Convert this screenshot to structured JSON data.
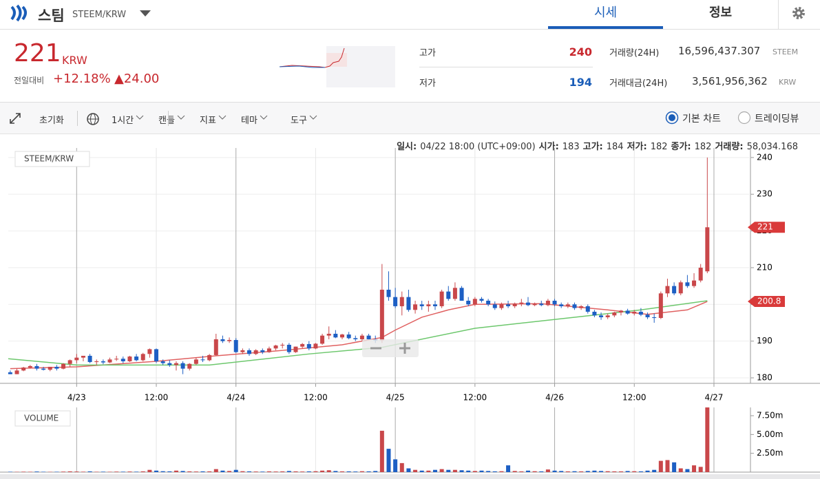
{
  "header": {
    "coin_name": "스팀",
    "pair": "STEEM/KRW",
    "tabs": [
      "시세",
      "정보"
    ]
  },
  "summary": {
    "price": "221",
    "currency": "KRW",
    "change_label": "전일대비",
    "change_pct": "+12.18%",
    "change_abs": "▲24.00",
    "stats": [
      {
        "label": "고가",
        "value": "240"
      },
      {
        "label": "저가",
        "value": "194"
      }
    ],
    "volume": [
      {
        "label": "거래량(24H)",
        "value": "16,596,437.307",
        "unit": "STEEM"
      },
      {
        "label": "거래대금(24H)",
        "value": "3,561,956,362",
        "unit": "KRW"
      }
    ]
  },
  "toolbar": {
    "reset": "초기화",
    "menus": [
      "1시간",
      "캔들",
      "지표",
      "테마",
      "도구"
    ],
    "chart_modes": [
      "기본 차트",
      "트레이딩뷰"
    ]
  },
  "info_line": [
    {
      "label": "일시:",
      "value": "04/22 18:00 (UTC+09:00)"
    },
    {
      "label": "시가:",
      "value": "183"
    },
    {
      "label": "고가:",
      "value": "184"
    },
    {
      "label": "저가:",
      "value": "182"
    },
    {
      "label": "종가:",
      "value": "182"
    },
    {
      "label": "거래량:",
      "value": "58,034.168"
    }
  ],
  "chart_data": [
    {
      "type": "candlestick",
      "pane_label": "STEEM/KRW",
      "up_color": "#c9474a",
      "down_color": "#1d5fc4",
      "x": [
        0,
        1,
        2,
        3,
        4,
        5,
        6,
        7,
        8,
        9,
        10,
        11,
        12,
        13,
        14,
        15,
        16,
        17,
        18,
        19,
        20,
        21,
        22,
        23,
        24,
        25,
        26,
        27,
        28,
        29,
        30,
        31,
        32,
        33,
        34,
        35,
        36,
        37,
        38,
        39,
        40,
        41,
        42,
        43,
        44,
        45,
        46,
        47,
        48,
        49,
        50,
        51,
        52,
        53,
        54,
        55,
        56,
        57,
        58,
        59,
        60,
        61,
        62,
        63,
        64,
        65,
        66,
        67,
        68,
        69,
        70,
        71,
        72,
        73,
        74,
        75,
        76,
        77,
        78,
        79,
        80,
        81,
        82,
        83,
        84,
        85,
        86,
        87,
        88,
        89,
        90,
        91,
        92,
        93,
        94,
        95,
        96,
        97,
        98,
        99,
        100,
        101,
        102,
        103,
        104,
        105
      ],
      "open": [
        181.5,
        181,
        182,
        182.8,
        183.2,
        182.5,
        182.2,
        183,
        182.5,
        183.8,
        184.8,
        185.5,
        186,
        184.3,
        184.5,
        184.2,
        185,
        185.2,
        184.5,
        185.8,
        184.8,
        186.5,
        187.8,
        184.5,
        184,
        183.5,
        184,
        182.5,
        183.8,
        185,
        184.8,
        186.2,
        190.5,
        190,
        190.3,
        187,
        187.5,
        186.5,
        187.5,
        187,
        188,
        188.8,
        189,
        187,
        188.5,
        189.2,
        188,
        189.3,
        191.5,
        192,
        191,
        191.8,
        190.8,
        190.5,
        191.5,
        190.5,
        190.2,
        204,
        202,
        199.5,
        202,
        198.5,
        200,
        199.5,
        200,
        199.5,
        203.5,
        201.5,
        204.5,
        201,
        200,
        201.5,
        201,
        200,
        199,
        200,
        199.5,
        200.2,
        200.5,
        199.8,
        200.2,
        199.8,
        201,
        200,
        199.5,
        200,
        199,
        199.5,
        198,
        197,
        196.5,
        197,
        197.8,
        198.3,
        197.5,
        198,
        197.2,
        196.5,
        196.3,
        203,
        205,
        203,
        206,
        205,
        206.5,
        209
      ],
      "high": [
        182,
        182.5,
        183,
        183.5,
        183.8,
        183,
        183,
        183.5,
        184,
        185,
        186.5,
        186,
        186.5,
        185,
        185,
        185.5,
        186,
        185.8,
        186,
        186.5,
        186.8,
        188,
        188,
        185,
        184.8,
        184.5,
        184.5,
        184,
        185.5,
        186,
        186.5,
        192,
        191.5,
        191,
        190.8,
        188,
        188,
        187.8,
        188,
        188.5,
        189,
        189.5,
        189.5,
        188.5,
        189.5,
        190,
        189.5,
        192,
        194,
        193,
        192,
        192.5,
        191.5,
        192,
        192,
        191.5,
        211,
        209,
        204.5,
        203.5,
        204,
        201,
        201,
        201,
        201,
        204,
        205,
        206,
        205,
        202,
        202,
        202,
        201.5,
        200.8,
        200.5,
        201,
        200.5,
        201.5,
        202,
        200.5,
        201,
        201.5,
        201.5,
        200.5,
        200.5,
        200.5,
        199.8,
        200,
        198.5,
        197.8,
        197.5,
        198,
        198.5,
        198.8,
        198.5,
        199,
        197.8,
        197.5,
        203.5,
        207,
        206,
        206.5,
        208,
        208.5,
        211,
        240
      ],
      "low": [
        181,
        181,
        181.8,
        182.5,
        182,
        182,
        181.8,
        182,
        182.3,
        183,
        184,
        184.5,
        184,
        183.5,
        183.7,
        184,
        184.6,
        184,
        184.3,
        184.5,
        184.5,
        185.5,
        184,
        183.5,
        183,
        182,
        181,
        182,
        183.5,
        184.3,
        184.5,
        186,
        189.5,
        189.5,
        186.8,
        186.5,
        186,
        186.2,
        186.5,
        186.8,
        187.5,
        188,
        186.5,
        186.8,
        188,
        187.5,
        187.8,
        189,
        190.5,
        190.8,
        190.5,
        190.5,
        190,
        190,
        190.3,
        189.5,
        189.5,
        201,
        199,
        197,
        198,
        197.5,
        198.5,
        198,
        198.5,
        199,
        201,
        201,
        201,
        199.5,
        199.5,
        200.5,
        199.5,
        198.5,
        198.5,
        199,
        199,
        199.5,
        199.5,
        199.5,
        199.5,
        199.5,
        199.5,
        199,
        199,
        198.5,
        198.5,
        197.5,
        196.5,
        195.8,
        196,
        196.5,
        197,
        197.2,
        197,
        196.8,
        196,
        195,
        196,
        202,
        202.5,
        202.5,
        204.5,
        204.5,
        206,
        208.5
      ],
      "close": [
        181,
        182,
        182.8,
        183.2,
        182.5,
        182.2,
        183,
        182.5,
        183.8,
        184.8,
        185.5,
        186,
        184.3,
        184.5,
        184.2,
        185,
        185.2,
        184.5,
        185.8,
        184.8,
        186.5,
        187.8,
        184.5,
        184,
        183.5,
        184,
        182.5,
        183.8,
        185,
        184.8,
        186.2,
        190.5,
        190,
        190.3,
        187,
        187.5,
        186.5,
        187.5,
        187,
        188,
        188.8,
        189,
        187,
        188.5,
        189.2,
        188,
        189.3,
        191.5,
        192,
        191,
        191.8,
        190.8,
        190.5,
        191.5,
        190.5,
        190.2,
        204,
        202,
        199.5,
        202,
        198.5,
        200,
        199.5,
        200,
        199.5,
        203.5,
        201.5,
        204.5,
        201,
        200,
        201.5,
        201,
        200,
        199,
        200,
        199.5,
        200.2,
        200.5,
        199.8,
        200.2,
        199.8,
        201,
        200,
        199.5,
        200,
        199,
        199.5,
        198,
        197,
        196.5,
        197,
        197.8,
        198.3,
        197.5,
        198,
        197.2,
        196.5,
        196.3,
        203,
        205,
        203,
        206,
        205,
        206.5,
        210,
        221
      ],
      "ma": [
        {
          "color": "#e06060",
          "x": [
            0,
            10,
            22,
            31,
            40,
            50,
            56,
            58,
            62,
            66,
            70,
            80,
            90,
            96,
            102,
            105
          ],
          "values": [
            182.5,
            183,
            184.5,
            186,
            187.3,
            189,
            191,
            193,
            196.5,
            198.5,
            200,
            200.2,
            198.5,
            197.3,
            198.5,
            200.8
          ]
        },
        {
          "color": "#6cc76c",
          "x": [
            -0.3,
            10,
            30,
            45,
            56,
            70,
            85,
            95,
            105
          ],
          "values": [
            185.2,
            183.5,
            183.5,
            186.5,
            188.3,
            193.5,
            196.5,
            198.5,
            201
          ]
        }
      ],
      "price_tags": [
        {
          "value": 221,
          "label": "221",
          "color": "#d93a3a"
        },
        {
          "value": 200.8,
          "label": "200.8",
          "color": "#d93a3a"
        }
      ],
      "xlim": [
        -0.3,
        111.5
      ],
      "xticks": [
        {
          "value": 10,
          "label": "4/23"
        },
        {
          "value": 22,
          "label": "12:00"
        },
        {
          "value": 34,
          "label": "4/24"
        },
        {
          "value": 46,
          "label": "12:00"
        },
        {
          "value": 58,
          "label": "4/25"
        },
        {
          "value": 70,
          "label": "12:00"
        },
        {
          "value": 82,
          "label": "4/26"
        },
        {
          "value": 94,
          "label": "12:00"
        },
        {
          "value": 106,
          "label": "4/27"
        }
      ],
      "ylim": [
        178.5,
        242.6
      ],
      "yticks": [
        180,
        190,
        200,
        210,
        220,
        230,
        240
      ],
      "grid": true
    },
    {
      "type": "volume-bar",
      "pane_label": "VOLUME",
      "values": [
        0.05,
        0.04,
        0.06,
        0.05,
        0.08,
        0.05,
        0.04,
        0.05,
        0.07,
        0.1,
        0.08,
        0.06,
        0.1,
        0.05,
        0.06,
        0.05,
        0.07,
        0.06,
        0.08,
        0.06,
        0.1,
        0.3,
        0.2,
        0.12,
        0.1,
        0.2,
        0.15,
        0.1,
        0.08,
        0.1,
        0.1,
        0.4,
        0.2,
        0.15,
        0.3,
        0.12,
        0.1,
        0.08,
        0.07,
        0.1,
        0.08,
        0.1,
        0.15,
        0.1,
        0.08,
        0.1,
        0.12,
        0.2,
        0.25,
        0.15,
        0.1,
        0.1,
        0.08,
        0.12,
        0.1,
        0.15,
        5.5,
        3.1,
        1.7,
        1.2,
        0.5,
        0.3,
        0.2,
        0.2,
        0.3,
        0.4,
        0.3,
        0.3,
        0.25,
        0.2,
        0.15,
        0.2,
        0.15,
        0.1,
        0.12,
        0.9,
        0.15,
        0.1,
        0.2,
        0.12,
        0.1,
        0.35,
        0.2,
        0.15,
        0.1,
        0.12,
        0.1,
        0.15,
        0.2,
        0.15,
        0.12,
        0.1,
        0.1,
        0.15,
        0.12,
        0.1,
        0.2,
        0.3,
        1.5,
        1.6,
        1.3,
        0.5,
        0.4,
        0.9,
        0.7,
        8.6
      ],
      "ylim": [
        0,
        8.6
      ],
      "yticks": [
        {
          "value": 2.5,
          "label": "2.50m"
        },
        {
          "value": 5,
          "label": "5.00m"
        },
        {
          "value": 7.5,
          "label": "7.50m"
        }
      ]
    }
  ]
}
